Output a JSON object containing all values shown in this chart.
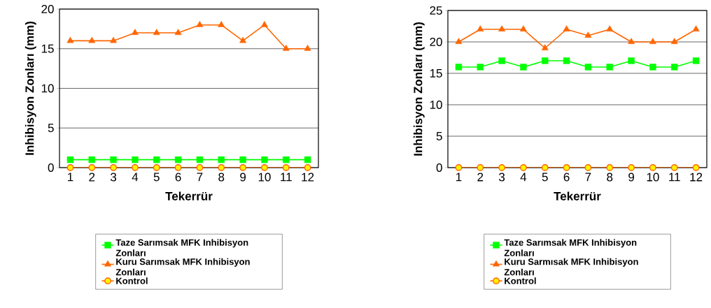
{
  "chart_data": [
    {
      "type": "line",
      "xlabel": "Tekerrür",
      "ylabel": "Inhibisyon Zonları (mm)",
      "categories": [
        "1",
        "2",
        "3",
        "4",
        "5",
        "6",
        "7",
        "8",
        "9",
        "10",
        "11",
        "12"
      ],
      "ylim": [
        0,
        20
      ],
      "yticks": [
        0,
        5,
        10,
        15,
        20
      ],
      "grid": "y",
      "legend": "bottom",
      "series": [
        {
          "name": "Taze Sarımsak MFK Inhibisyon Zonları",
          "color": "#00ff00",
          "marker": "square",
          "values": [
            1,
            1,
            1,
            1,
            1,
            1,
            1,
            1,
            1,
            1,
            1,
            1
          ]
        },
        {
          "name": "Kuru Sarımsak MFK Inhibisyon Zonları",
          "color": "#ff6600",
          "marker": "triangle",
          "values": [
            16,
            16,
            16,
            17,
            17,
            17,
            18,
            18,
            16,
            18,
            15,
            15
          ]
        },
        {
          "name": "Kontrol",
          "color": "#ff6600",
          "marker": "circle",
          "values": [
            0,
            0,
            0,
            0,
            0,
            0,
            0,
            0,
            0,
            0,
            0,
            0
          ]
        }
      ]
    },
    {
      "type": "line",
      "xlabel": "Tekerrür",
      "ylabel": "Inhibisyon Zonları (mm)",
      "categories": [
        "1",
        "2",
        "3",
        "4",
        "5",
        "6",
        "7",
        "8",
        "9",
        "10",
        "11",
        "12"
      ],
      "ylim": [
        0,
        25
      ],
      "yticks": [
        0,
        5,
        10,
        15,
        20,
        25
      ],
      "grid": "y",
      "legend": "bottom",
      "series": [
        {
          "name": "Taze Sarımsak MFK Inhibisyon Zonları",
          "color": "#00ff00",
          "marker": "square",
          "values": [
            16,
            16,
            17,
            16,
            17,
            17,
            16,
            16,
            17,
            16,
            16,
            17
          ]
        },
        {
          "name": "Kuru Sarmısak MFK Inhibisyon Zonları",
          "color": "#ff6600",
          "marker": "triangle",
          "values": [
            20,
            22,
            22,
            22,
            19,
            22,
            21,
            22,
            20,
            20,
            20,
            22
          ]
        },
        {
          "name": "Kontrol",
          "color": "#ff6600",
          "marker": "circle",
          "values": [
            0,
            0,
            0,
            0,
            0,
            0,
            0,
            0,
            0,
            0,
            0,
            0
          ]
        }
      ]
    }
  ]
}
